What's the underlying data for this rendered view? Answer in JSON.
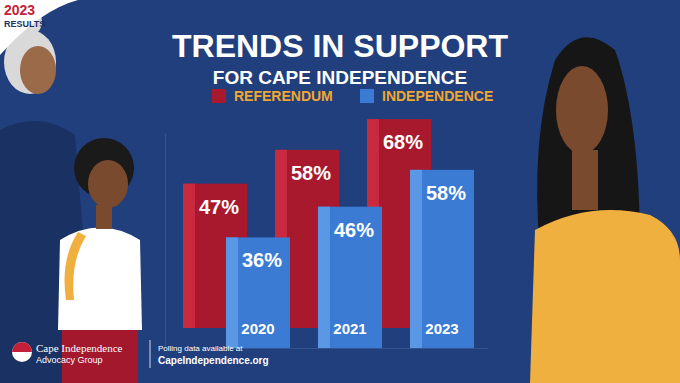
{
  "chart_data": {
    "type": "bar",
    "title": "TRENDS IN SUPPORT",
    "subtitle": "FOR CAPE INDEPENDENCE",
    "categories": [
      "2020",
      "2021",
      "2023"
    ],
    "series": [
      {
        "name": "REFERENDUM",
        "color": "#a8192e",
        "values": [
          47,
          58,
          68
        ],
        "value_labels": [
          "47%",
          "58%",
          "68%"
        ]
      },
      {
        "name": "INDEPENDENCE",
        "color": "#3c7bd3",
        "values": [
          36,
          46,
          58
        ],
        "value_labels": [
          "36%",
          "46%",
          "58%"
        ]
      }
    ],
    "ylim": [
      0,
      70
    ],
    "data_labels": true,
    "tick_labels": "x",
    "legend": "top",
    "annotations": [
      "2023",
      "RESULTS",
      "Cape Independence",
      "Advocacy Group",
      "Polling data available at",
      "CapeIndependence.org"
    ]
  }
}
